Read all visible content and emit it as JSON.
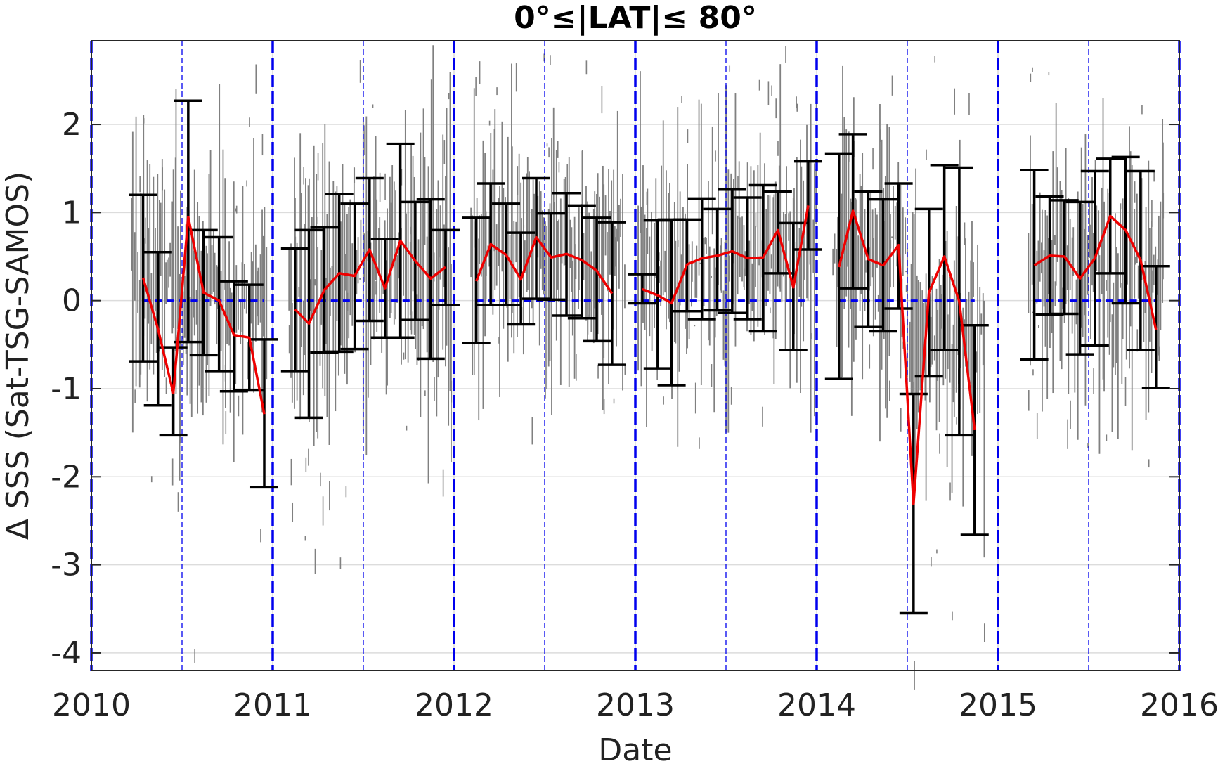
{
  "chart_data": {
    "type": "scatter",
    "title": "0°≤|LAT|≤ 80°",
    "xlabel": "Date",
    "ylabel": "Δ SSS (Sat-TSG-SAMOS)",
    "xlim": [
      "2010-01-01",
      "2016-01-01"
    ],
    "ylim": [
      -4.2,
      2.95
    ],
    "x_ticks": [
      "2010",
      "2011",
      "2012",
      "2013",
      "2014",
      "2015",
      "2016"
    ],
    "y_ticks": [
      "2",
      "1",
      "0",
      "-1",
      "-2",
      "-3",
      "-4"
    ],
    "grid": true,
    "zero_line_color": "#0000ee",
    "series_colors": {
      "scatter": "#808080",
      "mean": "#ee0000",
      "errorbars": "#000000",
      "year_lines": "#0000ee"
    },
    "series": [
      {
        "type": "errorbar",
        "points": [
          {
            "x": "2010-04-15",
            "lower": -0.69,
            "upper": 1.2
          },
          {
            "x": "2010-05-15",
            "lower": -1.19,
            "upper": 0.55
          },
          {
            "x": "2010-06-15",
            "lower": -1.53,
            "upper": -0.53
          },
          {
            "x": "2010-07-15",
            "lower": -0.47,
            "upper": 2.27
          },
          {
            "x": "2010-08-15",
            "lower": -0.62,
            "upper": 0.8
          },
          {
            "x": "2010-09-15",
            "lower": -0.8,
            "upper": 0.72
          },
          {
            "x": "2010-10-15",
            "lower": -1.03,
            "upper": 0.22
          },
          {
            "x": "2010-11-15",
            "lower": -1.02,
            "upper": 0.18
          },
          {
            "x": "2010-12-15",
            "lower": -2.12,
            "upper": -0.44
          },
          {
            "x": "2011-02-15",
            "lower": -0.8,
            "upper": 0.59
          },
          {
            "x": "2011-03-15",
            "lower": -1.33,
            "upper": 0.8
          },
          {
            "x": "2011-04-15",
            "lower": -0.59,
            "upper": 0.83
          },
          {
            "x": "2011-05-15",
            "lower": -0.58,
            "upper": 1.21
          },
          {
            "x": "2011-06-15",
            "lower": -0.55,
            "upper": 1.1
          },
          {
            "x": "2011-07-15",
            "lower": -0.23,
            "upper": 1.39
          },
          {
            "x": "2011-08-15",
            "lower": -0.42,
            "upper": 0.7
          },
          {
            "x": "2011-09-15",
            "lower": -0.42,
            "upper": 1.78
          },
          {
            "x": "2011-10-15",
            "lower": -0.22,
            "upper": 1.12
          },
          {
            "x": "2011-11-15",
            "lower": -0.66,
            "upper": 1.15
          },
          {
            "x": "2011-12-15",
            "lower": -0.05,
            "upper": 0.8
          },
          {
            "x": "2012-02-15",
            "lower": -0.48,
            "upper": 0.94
          },
          {
            "x": "2012-03-15",
            "lower": -0.05,
            "upper": 1.33
          },
          {
            "x": "2012-04-15",
            "lower": -0.05,
            "upper": 1.1
          },
          {
            "x": "2012-05-15",
            "lower": -0.27,
            "upper": 0.77
          },
          {
            "x": "2012-06-15",
            "lower": 0.02,
            "upper": 1.39
          },
          {
            "x": "2012-07-15",
            "lower": 0.01,
            "upper": 0.99
          },
          {
            "x": "2012-08-15",
            "lower": -0.17,
            "upper": 1.22
          },
          {
            "x": "2012-09-15",
            "lower": -0.2,
            "upper": 1.08
          },
          {
            "x": "2012-10-15",
            "lower": -0.46,
            "upper": 0.94
          },
          {
            "x": "2012-11-15",
            "lower": -0.73,
            "upper": 0.89
          },
          {
            "x": "2013-01-15",
            "lower": -0.03,
            "upper": 0.3
          },
          {
            "x": "2013-02-15",
            "lower": -0.77,
            "upper": 0.91
          },
          {
            "x": "2013-03-15",
            "lower": -0.96,
            "upper": 0.92
          },
          {
            "x": "2013-04-15",
            "lower": -0.12,
            "upper": 0.92
          },
          {
            "x": "2013-05-15",
            "lower": -0.21,
            "upper": 1.16
          },
          {
            "x": "2013-06-15",
            "lower": -0.11,
            "upper": 1.04
          },
          {
            "x": "2013-07-15",
            "lower": -0.14,
            "upper": 1.26
          },
          {
            "x": "2013-08-15",
            "lower": -0.21,
            "upper": 1.17
          },
          {
            "x": "2013-09-15",
            "lower": -0.35,
            "upper": 1.31
          },
          {
            "x": "2013-10-15",
            "lower": 0.31,
            "upper": 1.24
          },
          {
            "x": "2013-11-15",
            "lower": -0.56,
            "upper": 0.88
          },
          {
            "x": "2013-12-15",
            "lower": 0.58,
            "upper": 1.58
          },
          {
            "x": "2014-02-15",
            "lower": -0.89,
            "upper": 1.67
          },
          {
            "x": "2014-03-15",
            "lower": 0.14,
            "upper": 1.89
          },
          {
            "x": "2014-04-15",
            "lower": -0.3,
            "upper": 1.24
          },
          {
            "x": "2014-05-15",
            "lower": -0.35,
            "upper": 1.15
          },
          {
            "x": "2014-06-15",
            "lower": -0.09,
            "upper": 1.33
          },
          {
            "x": "2014-07-15",
            "lower": -3.55,
            "upper": -1.06
          },
          {
            "x": "2014-08-15",
            "lower": -0.86,
            "upper": 1.04
          },
          {
            "x": "2014-09-15",
            "lower": -0.56,
            "upper": 1.54
          },
          {
            "x": "2014-10-15",
            "lower": -1.53,
            "upper": 1.51
          },
          {
            "x": "2014-11-15",
            "lower": -2.66,
            "upper": -0.28
          },
          {
            "x": "2015-03-15",
            "lower": -0.67,
            "upper": 1.48
          },
          {
            "x": "2015-04-15",
            "lower": -0.16,
            "upper": 1.18
          },
          {
            "x": "2015-05-15",
            "lower": -0.15,
            "upper": 1.14
          },
          {
            "x": "2015-06-15",
            "lower": -0.61,
            "upper": 1.12
          },
          {
            "x": "2015-07-15",
            "lower": -0.51,
            "upper": 1.47
          },
          {
            "x": "2015-08-15",
            "lower": 0.31,
            "upper": 1.61
          },
          {
            "x": "2015-09-15",
            "lower": -0.03,
            "upper": 1.63
          },
          {
            "x": "2015-10-15",
            "lower": -0.56,
            "upper": 1.47
          },
          {
            "x": "2015-11-15",
            "lower": -0.99,
            "upper": 0.39
          }
        ]
      },
      {
        "type": "line",
        "segments": [
          [
            [
              "2010-04-15",
              0.26
            ],
            [
              "2010-05-15",
              -0.32
            ],
            [
              "2010-06-15",
              -1.05
            ],
            [
              "2010-07-15",
              0.95
            ],
            [
              "2010-08-15",
              0.09
            ],
            [
              "2010-09-15",
              0.0
            ],
            [
              "2010-10-15",
              -0.39
            ],
            [
              "2010-11-15",
              -0.42
            ],
            [
              "2010-12-15",
              -1.29
            ]
          ],
          [
            [
              "2011-02-15",
              -0.1
            ],
            [
              "2011-03-15",
              -0.26
            ],
            [
              "2011-04-15",
              0.12
            ],
            [
              "2011-05-15",
              0.31
            ],
            [
              "2011-06-15",
              0.28
            ],
            [
              "2011-07-15",
              0.58
            ],
            [
              "2011-08-15",
              0.14
            ],
            [
              "2011-09-15",
              0.68
            ],
            [
              "2011-10-15",
              0.45
            ],
            [
              "2011-11-15",
              0.25
            ],
            [
              "2011-12-15",
              0.38
            ]
          ],
          [
            [
              "2012-02-15",
              0.22
            ],
            [
              "2012-03-15",
              0.64
            ],
            [
              "2012-04-15",
              0.52
            ],
            [
              "2012-05-15",
              0.24
            ],
            [
              "2012-06-15",
              0.72
            ],
            [
              "2012-07-15",
              0.49
            ],
            [
              "2012-08-15",
              0.53
            ],
            [
              "2012-09-15",
              0.46
            ],
            [
              "2012-10-15",
              0.34
            ],
            [
              "2012-11-15",
              0.08
            ]
          ],
          [
            [
              "2013-01-15",
              0.13
            ],
            [
              "2013-02-15",
              0.06
            ],
            [
              "2013-03-15",
              -0.03
            ],
            [
              "2013-04-15",
              0.41
            ],
            [
              "2013-05-15",
              0.48
            ],
            [
              "2013-06-15",
              0.51
            ],
            [
              "2013-07-15",
              0.56
            ],
            [
              "2013-08-15",
              0.48
            ],
            [
              "2013-09-15",
              0.49
            ],
            [
              "2013-10-15",
              0.8
            ],
            [
              "2013-11-15",
              0.15
            ],
            [
              "2013-12-15",
              1.08
            ]
          ],
          [
            [
              "2014-02-15",
              0.38
            ],
            [
              "2014-03-15",
              1.02
            ],
            [
              "2014-04-15",
              0.47
            ],
            [
              "2014-05-15",
              0.4
            ],
            [
              "2014-06-15",
              0.63
            ],
            [
              "2014-07-15",
              -2.31
            ],
            [
              "2014-08-15",
              0.09
            ],
            [
              "2014-09-15",
              0.5
            ],
            [
              "2014-10-15",
              -0.01
            ],
            [
              "2014-11-15",
              -1.47
            ]
          ],
          [
            [
              "2015-03-15",
              0.4
            ],
            [
              "2015-04-15",
              0.51
            ],
            [
              "2015-05-15",
              0.5
            ],
            [
              "2015-06-15",
              0.25
            ],
            [
              "2015-07-15",
              0.48
            ],
            [
              "2015-08-15",
              0.96
            ],
            [
              "2015-09-15",
              0.8
            ],
            [
              "2015-10-15",
              0.46
            ],
            [
              "2015-11-15",
              -0.33
            ]
          ]
        ]
      },
      {
        "type": "scatter",
        "clusters": [
          {
            "x": [
              "2010-03-20",
              "2010-06-25"
            ],
            "low": -2.6,
            "high": 2.4,
            "center": 0.3
          },
          {
            "x": [
              "2010-06-25",
              "2010-12-20"
            ],
            "low": -4.0,
            "high": 2.9,
            "center": 0.0
          },
          {
            "x": [
              "2011-02-01",
              "2011-06-01"
            ],
            "low": -3.0,
            "high": 2.0,
            "center": 0.1
          },
          {
            "x": [
              "2011-06-01",
              "2011-12-28"
            ],
            "low": -2.4,
            "high": 2.9,
            "center": 0.4
          },
          {
            "x": [
              "2012-02-01",
              "2012-07-01"
            ],
            "low": -1.9,
            "high": 2.9,
            "center": 0.5
          },
          {
            "x": [
              "2012-07-01",
              "2012-12-10"
            ],
            "low": -1.3,
            "high": 2.9,
            "center": 0.5
          },
          {
            "x": [
              "2013-01-05",
              "2013-07-01"
            ],
            "low": -2.3,
            "high": 2.9,
            "center": 0.4
          },
          {
            "x": [
              "2013-07-01",
              "2013-12-31"
            ],
            "low": -1.5,
            "high": 2.9,
            "center": 0.6
          },
          {
            "x": [
              "2014-02-01",
              "2014-07-01"
            ],
            "low": -1.6,
            "high": 2.9,
            "center": 0.6
          },
          {
            "x": [
              "2014-07-01",
              "2014-12-05"
            ],
            "low": -4.1,
            "high": 2.9,
            "center": -0.4
          },
          {
            "x": [
              "2015-03-01",
              "2015-12-01"
            ],
            "low": -1.9,
            "high": 2.9,
            "center": 0.4
          }
        ]
      }
    ]
  }
}
